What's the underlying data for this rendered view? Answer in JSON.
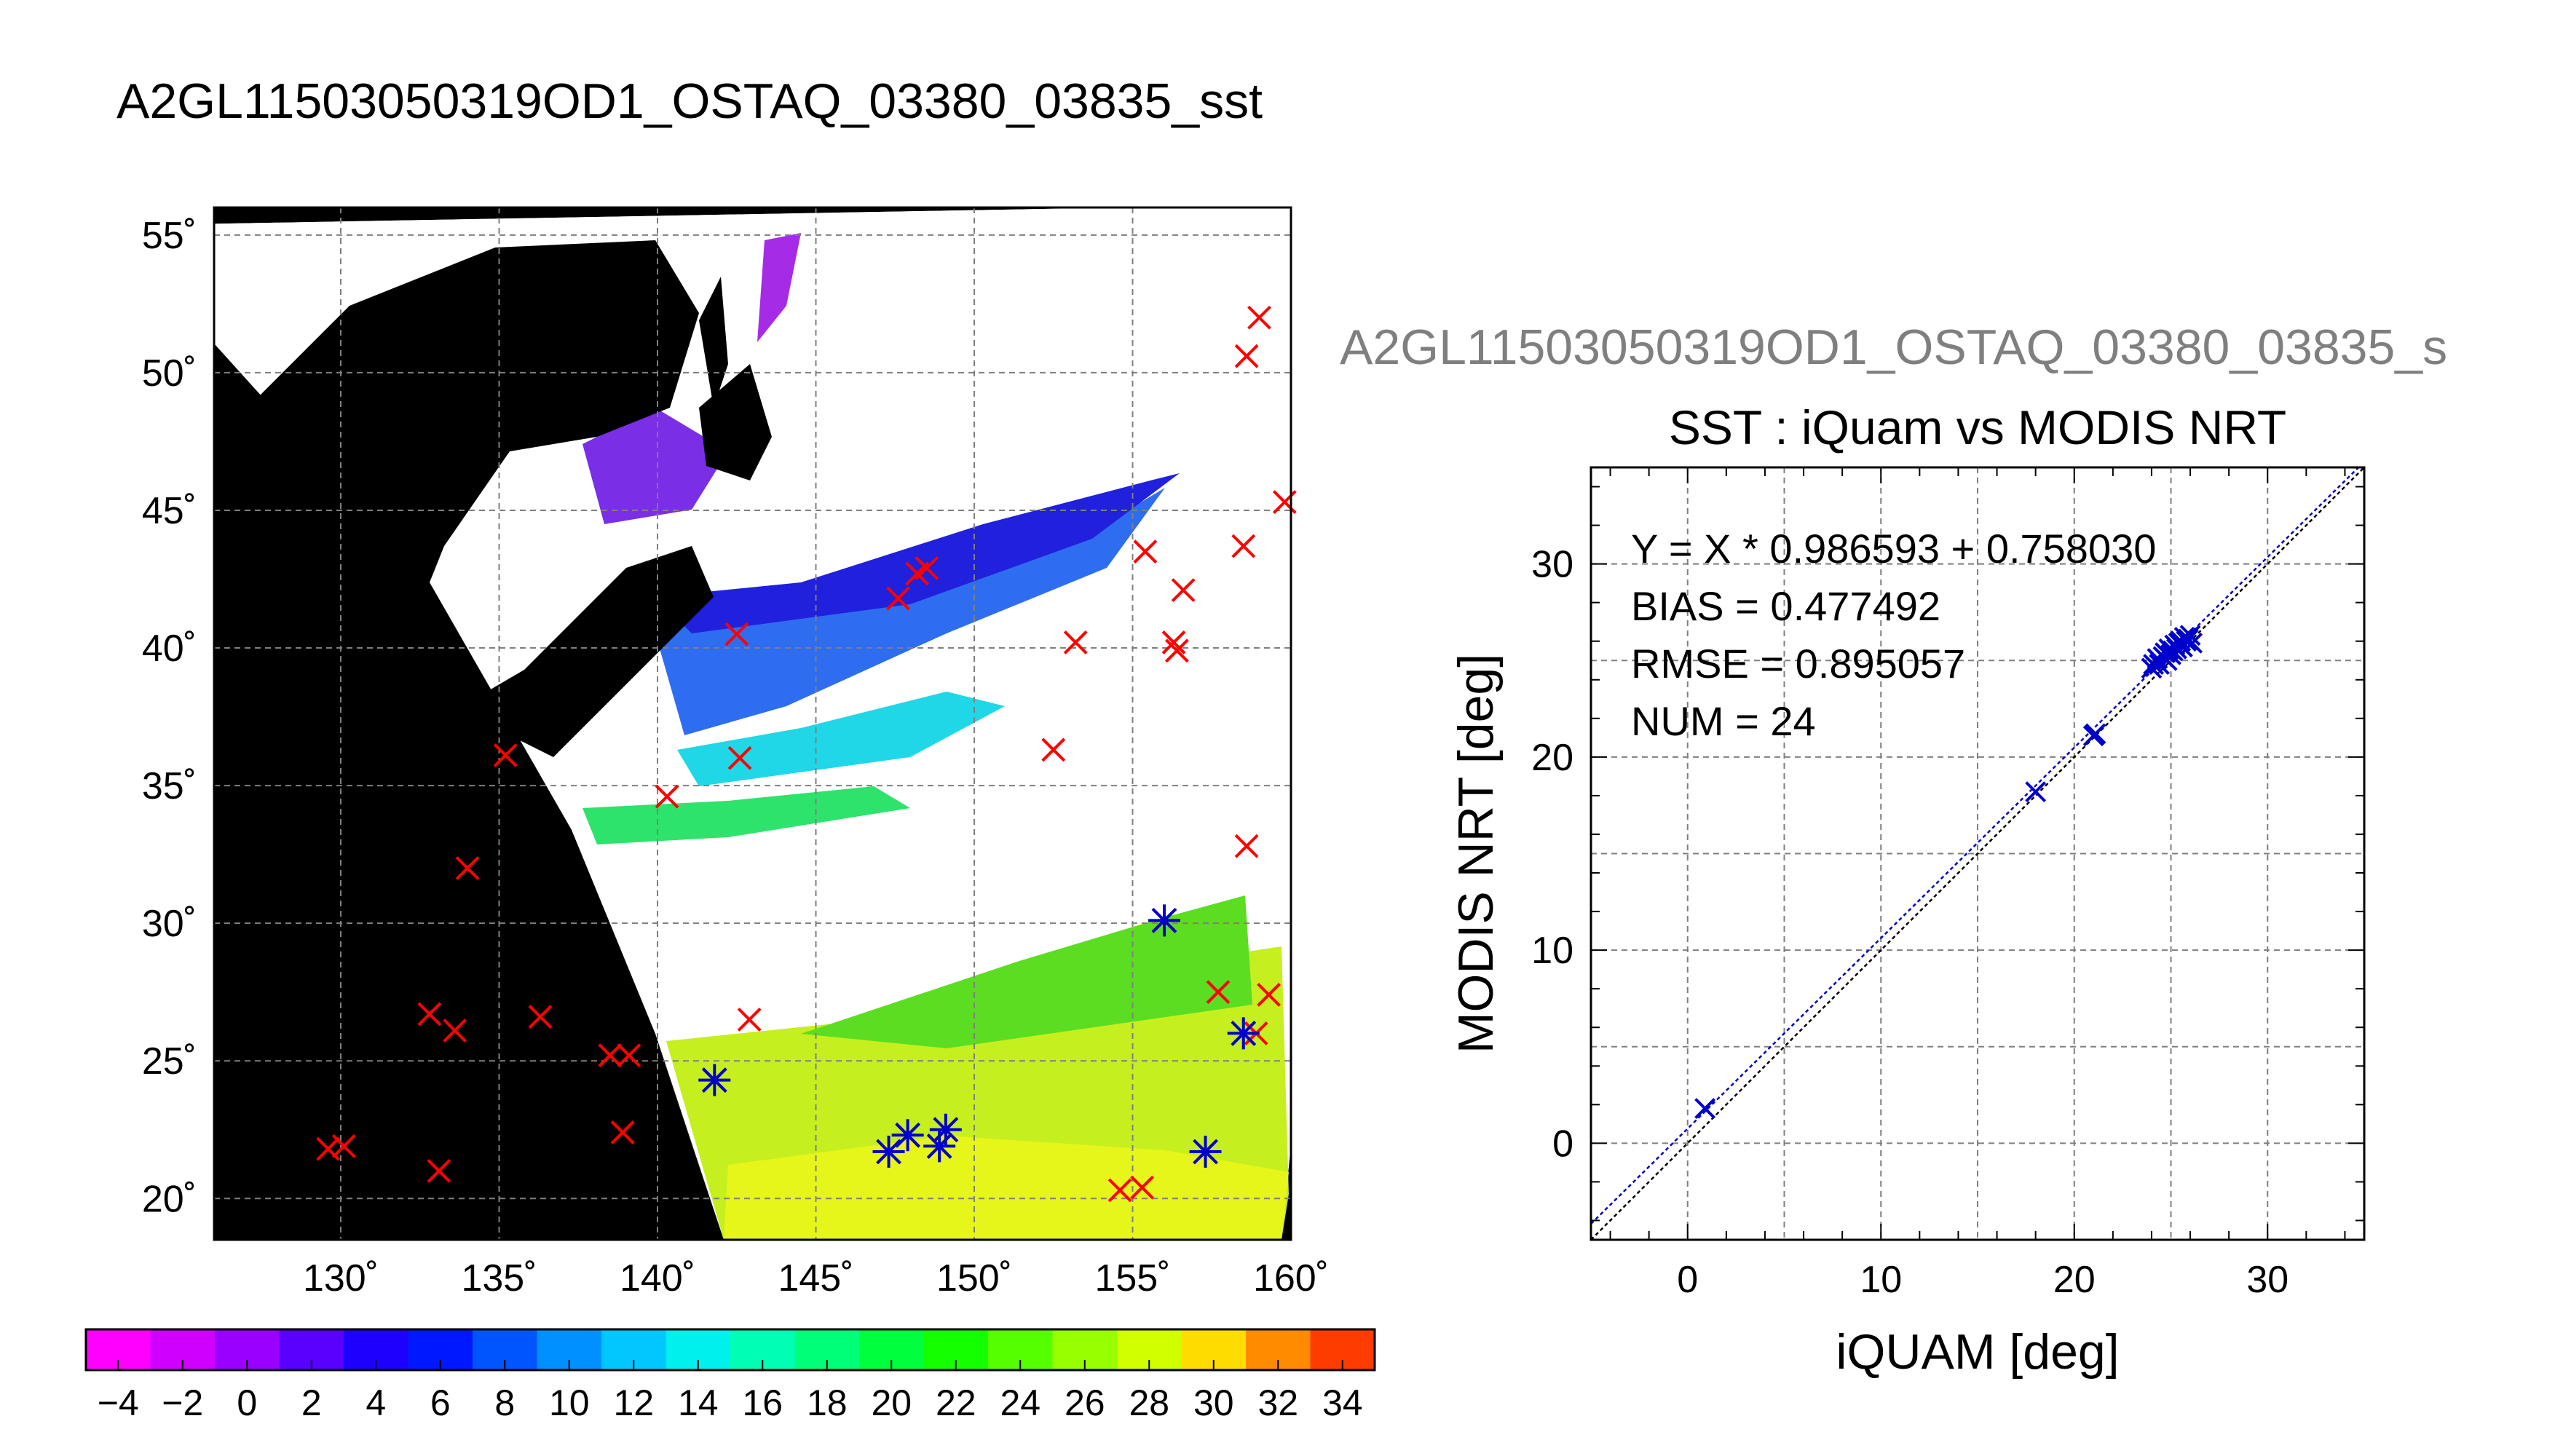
{
  "figure_title": "A2GL11503050319OD1_OSTAQ_03380_03835_sst",
  "second_panel_title": "A2GL11503050319OD1_OSTAQ_03380_03835_s",
  "colors": {
    "land_background": "#000000",
    "cloud_mask": "#ffffff",
    "iquam_marker": "#ff0000",
    "matched_marker": "#0000cc",
    "scatter_color": "#0000cc",
    "fit_line": "#0000cc",
    "identity_line": "#000000",
    "gridline": "#7f7f7f"
  },
  "map": {
    "x_tick_labels": [
      "130˚",
      "135˚",
      "140˚",
      "145˚",
      "150˚",
      "155˚",
      "160˚"
    ],
    "y_tick_labels": [
      "20˚",
      "25˚",
      "30˚",
      "35˚",
      "40˚",
      "45˚",
      "50˚",
      "55˚"
    ],
    "lon_range": [
      126,
      160
    ],
    "lat_range": [
      18.5,
      56
    ],
    "lon_ticks": [
      130,
      135,
      140,
      145,
      150,
      155,
      160
    ],
    "lat_ticks": [
      20,
      25,
      30,
      35,
      40,
      45,
      50,
      55
    ],
    "iquam_points": [
      [
        129.6,
        21.8
      ],
      [
        130.1,
        21.9
      ],
      [
        132.8,
        26.7
      ],
      [
        133.1,
        21.0
      ],
      [
        133.6,
        26.1
      ],
      [
        134.0,
        32.0
      ],
      [
        135.2,
        36.1
      ],
      [
        136.3,
        26.6
      ],
      [
        138.5,
        25.2
      ],
      [
        138.9,
        22.4
      ],
      [
        139.1,
        25.2
      ],
      [
        140.3,
        34.6
      ],
      [
        141.8,
        24.3
      ],
      [
        142.5,
        40.5
      ],
      [
        142.6,
        36.0
      ],
      [
        142.9,
        26.5
      ],
      [
        147.3,
        21.7
      ],
      [
        147.6,
        41.8
      ],
      [
        147.9,
        22.3
      ],
      [
        148.2,
        42.7
      ],
      [
        148.5,
        42.9
      ],
      [
        148.9,
        21.9
      ],
      [
        149.1,
        22.5
      ],
      [
        152.5,
        36.3
      ],
      [
        153.2,
        40.2
      ],
      [
        154.6,
        20.3
      ],
      [
        155.3,
        20.4
      ],
      [
        155.4,
        43.5
      ],
      [
        156.0,
        30.1
      ],
      [
        156.3,
        40.2
      ],
      [
        156.4,
        39.9
      ],
      [
        156.6,
        42.1
      ],
      [
        157.3,
        21.7
      ],
      [
        157.7,
        27.5
      ],
      [
        158.5,
        43.7
      ],
      [
        158.6,
        32.8
      ],
      [
        158.6,
        50.6
      ],
      [
        158.9,
        26.0
      ],
      [
        159.0,
        52.0
      ],
      [
        159.3,
        27.4
      ],
      [
        159.8,
        45.3
      ]
    ],
    "matched_points": [
      [
        141.8,
        24.3
      ],
      [
        147.3,
        21.7
      ],
      [
        147.9,
        22.3
      ],
      [
        148.9,
        21.9
      ],
      [
        149.1,
        22.5
      ],
      [
        156.0,
        30.1
      ],
      [
        157.3,
        21.7
      ],
      [
        158.5,
        26.0
      ]
    ]
  },
  "colorbar": {
    "tick_labels": [
      "−4",
      "−2",
      "0",
      "2",
      "4",
      "6",
      "8",
      "10",
      "12",
      "14",
      "16",
      "18",
      "20",
      "22",
      "24",
      "26",
      "28",
      "30",
      "32",
      "34"
    ],
    "range": [
      -5,
      35
    ]
  },
  "chart_data": {
    "type": "scatter",
    "title": "SST : iQuam vs MODIS NRT",
    "xlabel": "iQUAM [deg]",
    "ylabel": "MODIS NRT [deg]",
    "xlim": [
      -5,
      35
    ],
    "ylim": [
      -5,
      35
    ],
    "x_ticks": [
      0,
      10,
      20,
      30
    ],
    "y_ticks": [
      0,
      10,
      20,
      30
    ],
    "grid": true,
    "x_tick_labels": [
      "0",
      "10",
      "20",
      "30"
    ],
    "y_tick_labels": [
      "0",
      "10",
      "20",
      "30"
    ],
    "annotations": [
      "Y = X * 0.986593 + 0.758030",
      "BIAS = 0.477492",
      "RMSE = 0.895057",
      "NUM = 24"
    ],
    "fit": {
      "slope": 0.986593,
      "intercept": 0.75803
    },
    "points": [
      [
        0.9,
        1.8
      ],
      [
        18.0,
        18.2
      ],
      [
        21.0,
        21.1
      ],
      [
        21.1,
        21.2
      ],
      [
        24.0,
        24.6
      ],
      [
        24.1,
        24.8
      ],
      [
        24.3,
        25.1
      ],
      [
        24.4,
        24.8
      ],
      [
        24.6,
        25.2
      ],
      [
        24.7,
        25.4
      ],
      [
        24.8,
        25.0
      ],
      [
        24.9,
        25.6
      ],
      [
        25.0,
        25.3
      ],
      [
        25.1,
        25.5
      ],
      [
        25.2,
        25.8
      ],
      [
        25.3,
        25.6
      ],
      [
        25.4,
        25.9
      ],
      [
        25.5,
        26.0
      ],
      [
        25.6,
        25.7
      ],
      [
        25.7,
        26.2
      ],
      [
        25.8,
        26.0
      ],
      [
        25.9,
        26.1
      ],
      [
        26.0,
        26.3
      ],
      [
        26.1,
        25.9
      ]
    ]
  }
}
